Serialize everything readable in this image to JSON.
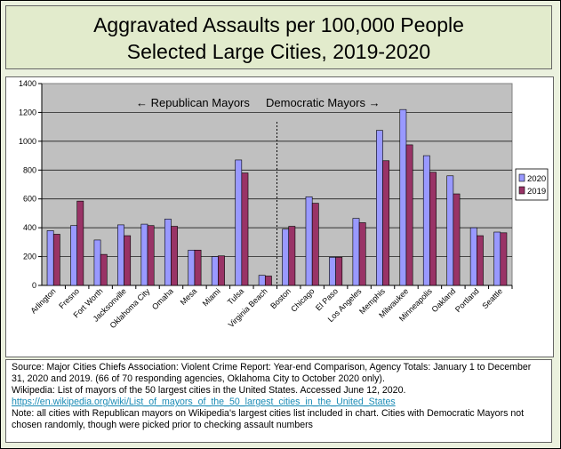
{
  "header": {
    "title_line1": "Aggravated Assaults per 100,000 People",
    "title_line2": "Selected Large Cities, 2019-2020"
  },
  "chart_data": {
    "type": "bar",
    "categories": [
      "Arlington",
      "Fresno",
      "Fort Worth",
      "Jacksonville",
      "Oklahoma City",
      "Omaha",
      "Mesa",
      "Miami",
      "Tulsa",
      "Virginia Beach",
      "Boston",
      "Chicago",
      "El Paso",
      "Los Angeles",
      "Memphis",
      "Milwaukee",
      "Minneapolis",
      "Oakland",
      "Portland",
      "Seattle"
    ],
    "series": [
      {
        "name": "2020",
        "color": "#9999ff",
        "values": [
          380,
          415,
          315,
          420,
          425,
          460,
          245,
          200,
          870,
          70,
          390,
          615,
          195,
          465,
          1075,
          1220,
          900,
          760,
          400,
          370
        ]
      },
      {
        "name": "2019",
        "color": "#993366",
        "values": [
          355,
          585,
          215,
          345,
          415,
          410,
          245,
          205,
          780,
          65,
          410,
          570,
          195,
          435,
          865,
          975,
          785,
          635,
          345,
          365
        ]
      }
    ],
    "ylim": [
      0,
      1400
    ],
    "yticks": [
      "0",
      "200",
      "400",
      "600",
      "800",
      "1000",
      "1200",
      "1400"
    ],
    "annotations": {
      "republican": "← Republican Mayors",
      "democratic": "Democratic Mayors →"
    },
    "divider_after_index": 9,
    "legend_position": "right",
    "plot_background": "#c0c0c0"
  },
  "source": {
    "line1": "Source: Major Cities Chiefs Association: Violent Crime Report: Year-end Comparison, Agency Totals: January 1 to December 31, 2020 and 2019. (66 of 70 responding agencies, Oklahoma City to October 2020 only).",
    "line2": "Wikipedia: List of mayors of the 50 largest cities in the United States.  Accessed June 12, 2020.",
    "link": "https://en.wikipedia.org/wiki/List_of_mayors_of_the_50_largest_cities_in_the_United_States",
    "note": "Note: all cities with Republican mayors on Wikipedia's largest cities list included in chart. Cities with Democratic Mayors not chosen randomly, though were picked prior to checking assault numbers"
  }
}
